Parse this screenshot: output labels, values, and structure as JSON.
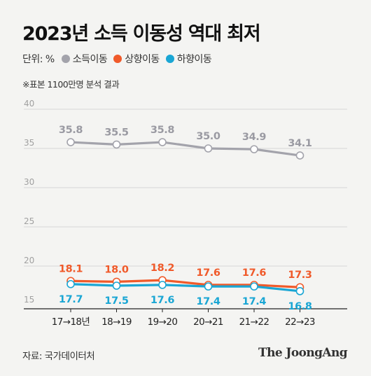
{
  "title": "2023년 소득 이동성 역대 최저",
  "unit_label": "단위: %",
  "legend": [
    {
      "name": "소득이동",
      "color": "#a3a3ab"
    },
    {
      "name": "상향이동",
      "color": "#f05a2a"
    },
    {
      "name": "하향이동",
      "color": "#1aa6d4"
    }
  ],
  "note": "※표본 1100만명 분석 결과",
  "source": "자료: 국가데이터처",
  "brand": "The JoongAng",
  "chart_data": {
    "type": "line",
    "categories": [
      "17→18년",
      "18→19",
      "19→20",
      "20→21",
      "21→22",
      "22→23"
    ],
    "yticks": [
      15,
      20,
      25,
      30,
      35,
      40
    ],
    "ylim": [
      15,
      40
    ],
    "grid": true,
    "series": [
      {
        "name": "소득이동",
        "color": "#a3a3ab",
        "values": [
          35.8,
          35.5,
          35.8,
          35.0,
          34.9,
          34.1
        ],
        "label_pos": "above",
        "label_color": "#9a9aa2"
      },
      {
        "name": "상향이동",
        "color": "#f05a2a",
        "values": [
          18.1,
          18.0,
          18.2,
          17.6,
          17.6,
          17.3
        ],
        "label_pos": "above",
        "label_color": "#f05a2a"
      },
      {
        "name": "하향이동",
        "color": "#1aa6d4",
        "values": [
          17.7,
          17.5,
          17.6,
          17.4,
          17.4,
          16.8
        ],
        "label_pos": "below",
        "label_color": "#1aa6d4"
      }
    ]
  }
}
